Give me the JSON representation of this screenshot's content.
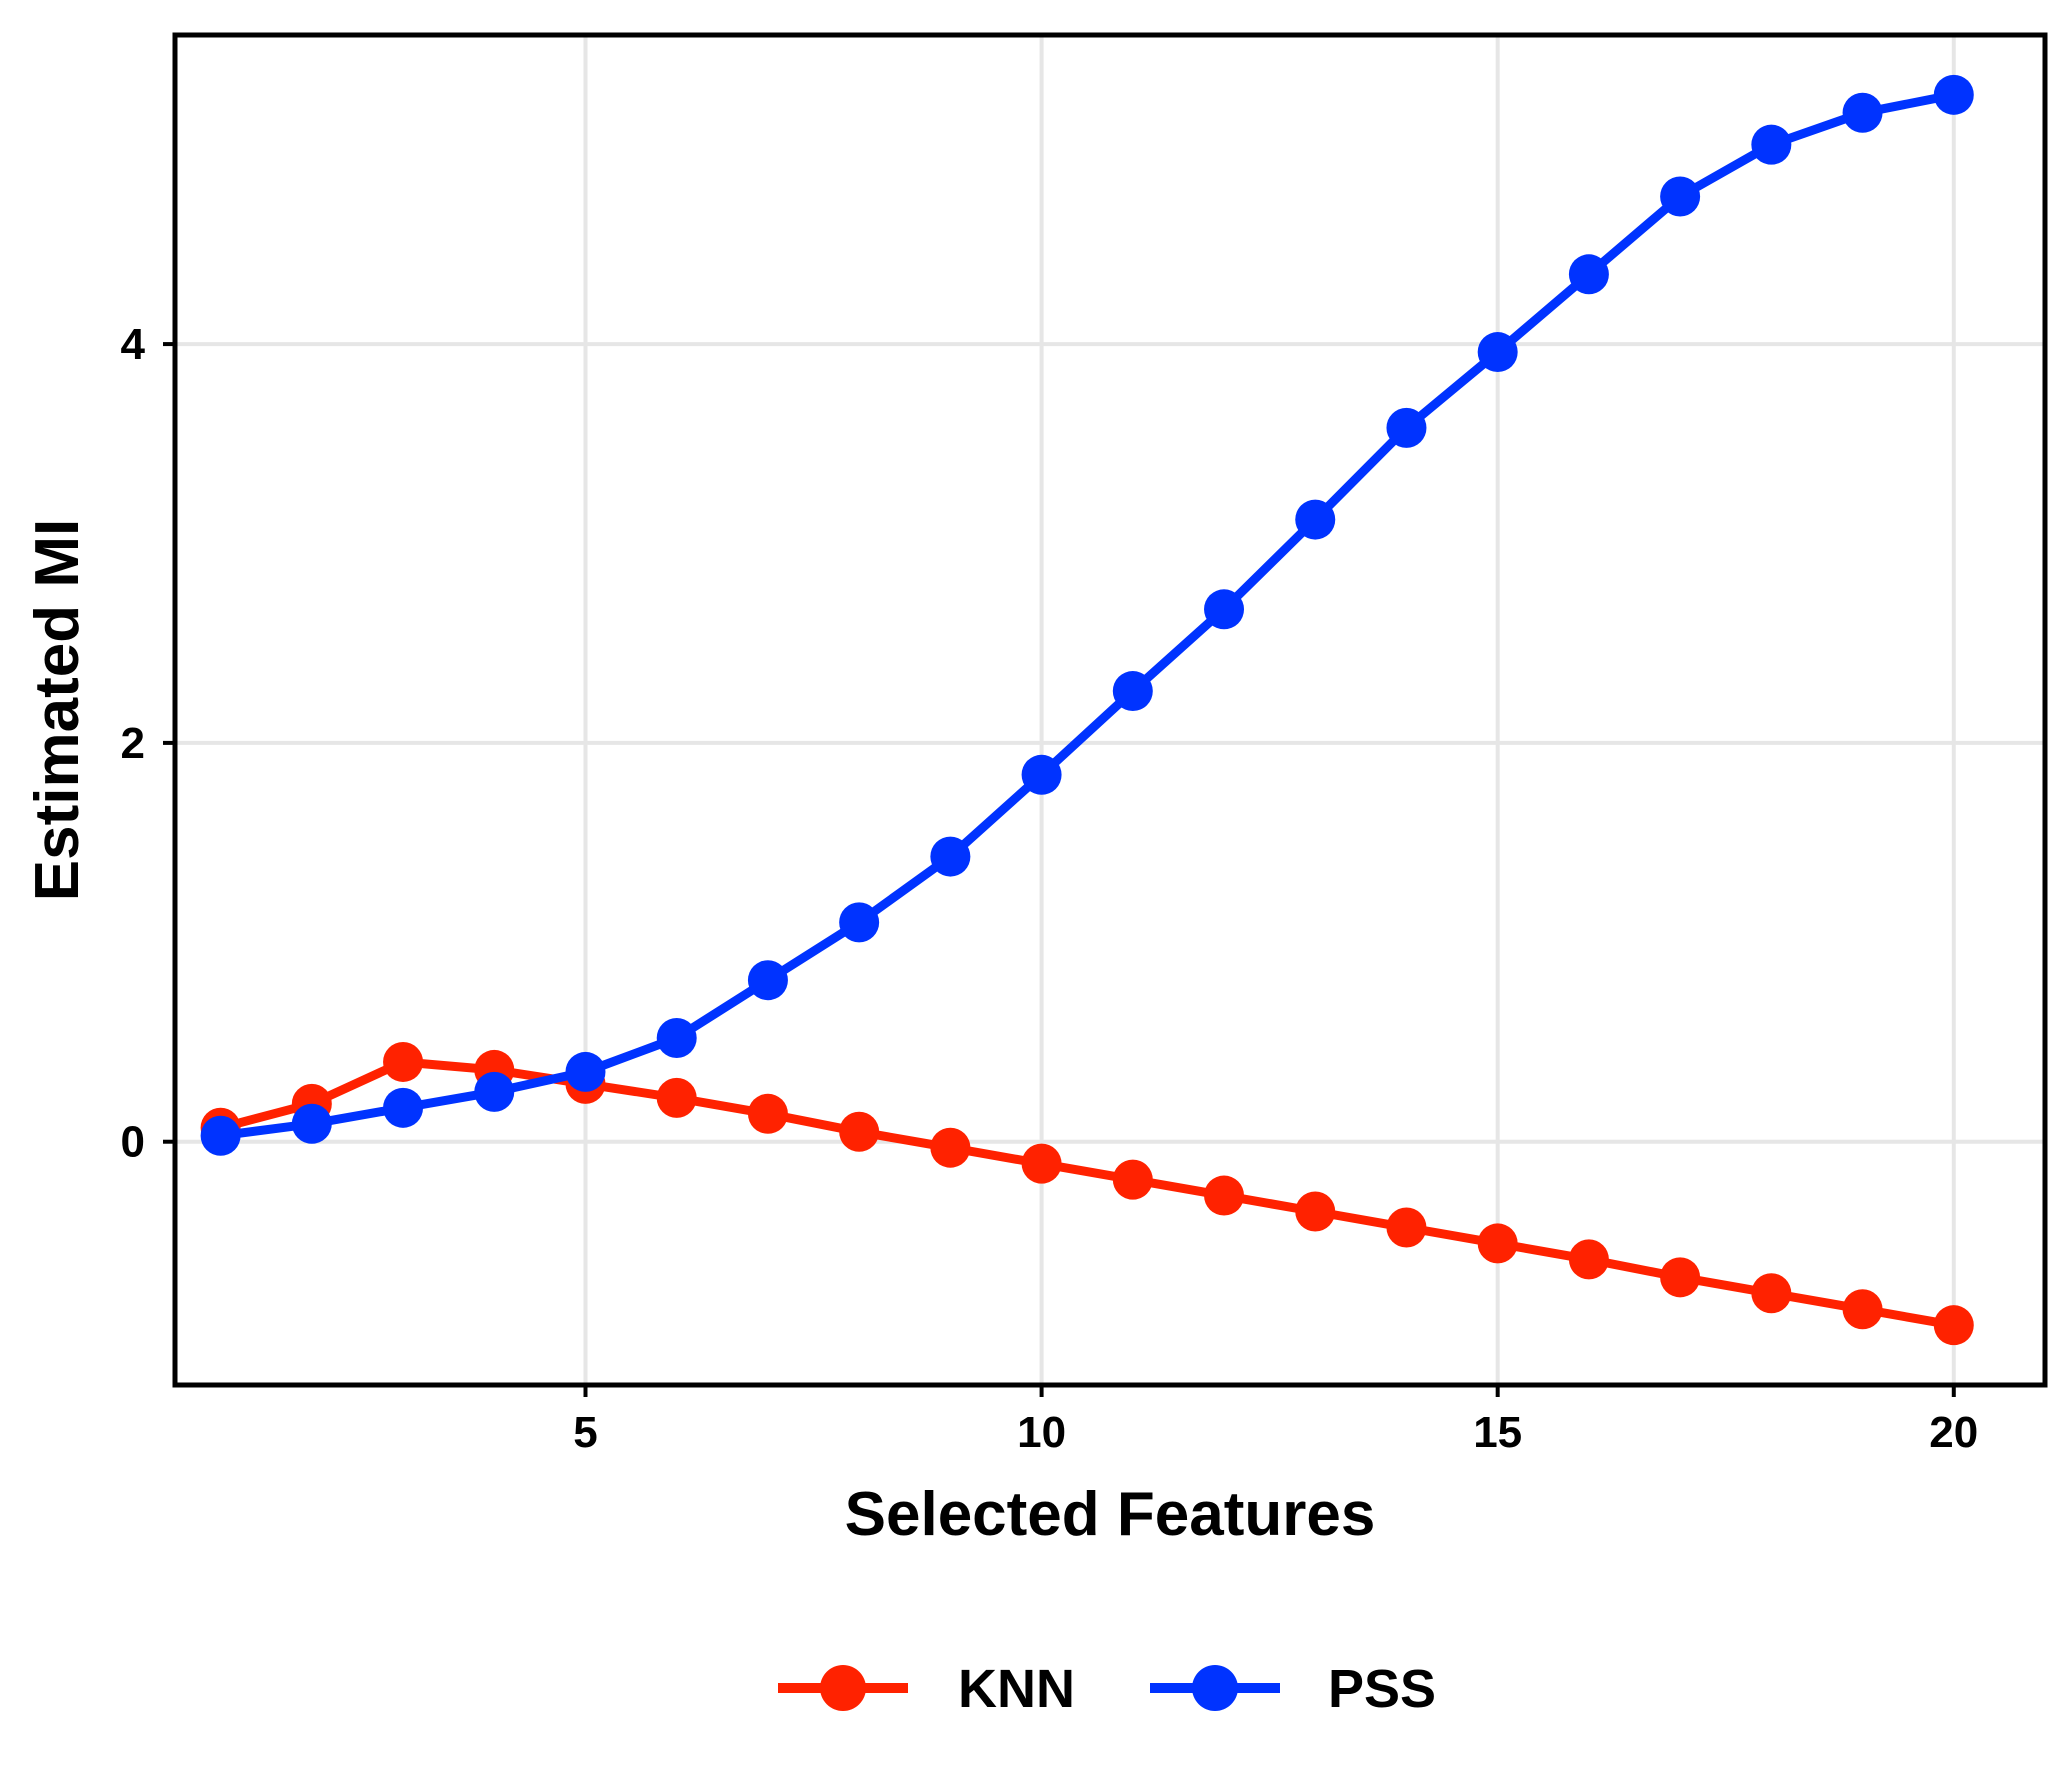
{
  "chart_data": {
    "type": "line",
    "xlabel": "Selected Features",
    "ylabel": "Estimated MI",
    "xlim": [
      0.5,
      21
    ],
    "ylim": [
      -1.22,
      5.55
    ],
    "xticks": [
      5,
      10,
      15,
      20
    ],
    "yticks": [
      0,
      2,
      4
    ],
    "xtick_labels": [
      "5",
      "10",
      "15",
      "20"
    ],
    "ytick_labels": [
      "0",
      "2",
      "4"
    ],
    "grid": true,
    "legend_position": "bottom",
    "x": [
      1,
      2,
      3,
      4,
      5,
      6,
      7,
      8,
      9,
      10,
      11,
      12,
      13,
      14,
      15,
      16,
      17,
      18,
      19,
      20
    ],
    "series": [
      {
        "name": "KNN",
        "color": "#ff2200",
        "values": [
          0.07,
          0.19,
          0.4,
          0.36,
          0.29,
          0.22,
          0.14,
          0.05,
          -0.03,
          -0.11,
          -0.19,
          -0.27,
          -0.35,
          -0.43,
          -0.51,
          -0.59,
          -0.68,
          -0.76,
          -0.84,
          -0.92
        ]
      },
      {
        "name": "PSS",
        "color": "#0033ff",
        "values": [
          0.03,
          0.09,
          0.17,
          0.25,
          0.35,
          0.52,
          0.81,
          1.1,
          1.43,
          1.84,
          2.26,
          2.67,
          3.12,
          3.58,
          3.96,
          4.35,
          4.74,
          5.0,
          5.16,
          5.25
        ]
      }
    ]
  }
}
